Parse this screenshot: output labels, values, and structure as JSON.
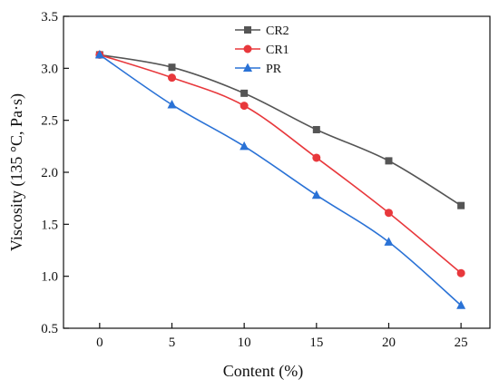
{
  "chart_data": {
    "type": "line",
    "title": "",
    "xlabel": "Content (%)",
    "ylabel": "Viscosity (135 °C, Pa·s)",
    "x": [
      0,
      5,
      10,
      15,
      20,
      25
    ],
    "x_ticks": [
      "0",
      "5",
      "10",
      "15",
      "20",
      "25"
    ],
    "y_ticks": [
      "0.5",
      "1.0",
      "1.5",
      "2.0",
      "2.5",
      "3.0",
      "3.5"
    ],
    "xlim": [
      -2.5,
      27
    ],
    "ylim": [
      0.5,
      3.5
    ],
    "grid": false,
    "legend_position": "top-center",
    "series": [
      {
        "name": "CR2",
        "marker": "square",
        "color": "#555555",
        "values": [
          3.13,
          3.01,
          2.76,
          2.41,
          2.11,
          1.68
        ]
      },
      {
        "name": "CR1",
        "marker": "circle",
        "color": "#e8383c",
        "values": [
          3.13,
          2.91,
          2.64,
          2.14,
          1.61,
          1.03
        ]
      },
      {
        "name": "PR",
        "marker": "triangle",
        "color": "#2a72d6",
        "values": [
          3.13,
          2.65,
          2.25,
          1.78,
          1.33,
          0.72
        ]
      }
    ]
  }
}
